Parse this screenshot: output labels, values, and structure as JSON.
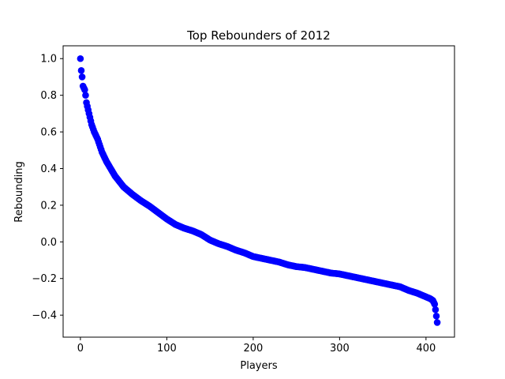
{
  "chart_data": {
    "type": "scatter",
    "title": "Top Rebounders of 2012",
    "xlabel": "Players",
    "ylabel": "Rebounding",
    "xlim": [
      -20,
      433
    ],
    "ylim": [
      -0.52,
      1.07
    ],
    "xticks": [
      0,
      100,
      200,
      300,
      400
    ],
    "yticks": [
      -0.4,
      -0.2,
      0.0,
      0.2,
      0.4,
      0.6,
      0.8,
      1.0
    ],
    "ytick_labels": [
      "−0.4",
      "−0.2",
      "0.0",
      "0.2",
      "0.4",
      "0.6",
      "0.8",
      "1.0"
    ],
    "grid": false,
    "marker_color": "#0000ff",
    "n_points": 414,
    "curve_anchors": [
      [
        0,
        1.0
      ],
      [
        1,
        0.935
      ],
      [
        2,
        0.9
      ],
      [
        3,
        0.85
      ],
      [
        5,
        0.83
      ],
      [
        6,
        0.8
      ],
      [
        7,
        0.76
      ],
      [
        10,
        0.7
      ],
      [
        13,
        0.64
      ],
      [
        16,
        0.6
      ],
      [
        20,
        0.56
      ],
      [
        25,
        0.49
      ],
      [
        30,
        0.44
      ],
      [
        35,
        0.4
      ],
      [
        40,
        0.36
      ],
      [
        45,
        0.33
      ],
      [
        50,
        0.3
      ],
      [
        55,
        0.28
      ],
      [
        60,
        0.26
      ],
      [
        70,
        0.225
      ],
      [
        80,
        0.195
      ],
      [
        90,
        0.16
      ],
      [
        100,
        0.125
      ],
      [
        110,
        0.095
      ],
      [
        120,
        0.075
      ],
      [
        130,
        0.06
      ],
      [
        140,
        0.04
      ],
      [
        150,
        0.01
      ],
      [
        160,
        -0.01
      ],
      [
        170,
        -0.025
      ],
      [
        180,
        -0.045
      ],
      [
        190,
        -0.06
      ],
      [
        200,
        -0.08
      ],
      [
        210,
        -0.09
      ],
      [
        220,
        -0.1
      ],
      [
        230,
        -0.11
      ],
      [
        240,
        -0.125
      ],
      [
        250,
        -0.135
      ],
      [
        260,
        -0.14
      ],
      [
        270,
        -0.15
      ],
      [
        280,
        -0.16
      ],
      [
        290,
        -0.17
      ],
      [
        300,
        -0.175
      ],
      [
        310,
        -0.185
      ],
      [
        320,
        -0.195
      ],
      [
        330,
        -0.205
      ],
      [
        340,
        -0.215
      ],
      [
        350,
        -0.225
      ],
      [
        360,
        -0.235
      ],
      [
        370,
        -0.245
      ],
      [
        380,
        -0.265
      ],
      [
        390,
        -0.28
      ],
      [
        400,
        -0.3
      ],
      [
        405,
        -0.31
      ],
      [
        408,
        -0.32
      ],
      [
        410,
        -0.34
      ],
      [
        411,
        -0.37
      ],
      [
        413,
        -0.44
      ]
    ]
  }
}
